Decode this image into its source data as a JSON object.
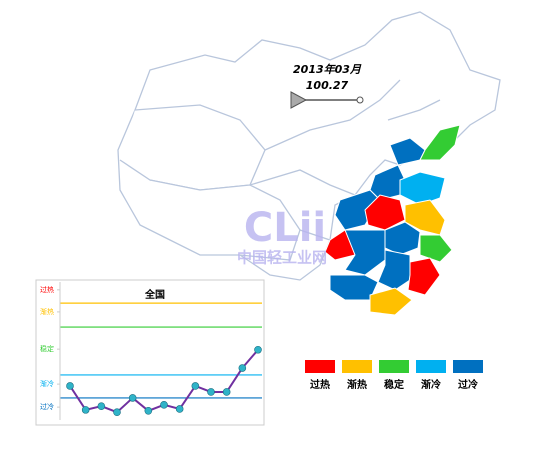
{
  "header": {
    "date": "2013年03月",
    "index": "100.27"
  },
  "watermark": {
    "logo": "CLii",
    "site": "中国轻工业网"
  },
  "legend": [
    {
      "label": "过热",
      "color": "#ff0000"
    },
    {
      "label": "渐热",
      "color": "#ffc000"
    },
    {
      "label": "稳定",
      "color": "#33cc33"
    },
    {
      "label": "渐冷",
      "color": "#00b0f0"
    },
    {
      "label": "过冷",
      "color": "#0070c0"
    }
  ],
  "chart_data": {
    "type": "line",
    "title": "全国",
    "ylim": [
      85,
      115
    ],
    "yticks": [
      {
        "value": 113.3,
        "label": "过热"
      },
      {
        "value": 108.5,
        "label": "渐热"
      },
      {
        "value": 100.4,
        "label": "稳定"
      },
      {
        "value": 92.8,
        "label": "渐冷"
      },
      {
        "value": 87.8,
        "label": "过冷"
      }
    ],
    "ytick_colors": [
      "#ff0000",
      "#ffc000",
      "#33cc33",
      "#00b0f0",
      "#0070c0"
    ],
    "reference_lines": [
      {
        "value": 110.4,
        "color": "#ffc000"
      },
      {
        "value": 105.2,
        "color": "#33cc33"
      },
      {
        "value": 94.8,
        "color": "#00b0f0"
      },
      {
        "value": 89.8,
        "color": "#0070c0"
      }
    ],
    "series": [
      {
        "color": "#7030a0",
        "marker_color": "#2fb3c8",
        "values": [
          92.4,
          87.2,
          88.0,
          86.7,
          89.8,
          87.0,
          88.3,
          87.4,
          92.4,
          91.1,
          91.1,
          96.3,
          100.27
        ]
      }
    ]
  }
}
